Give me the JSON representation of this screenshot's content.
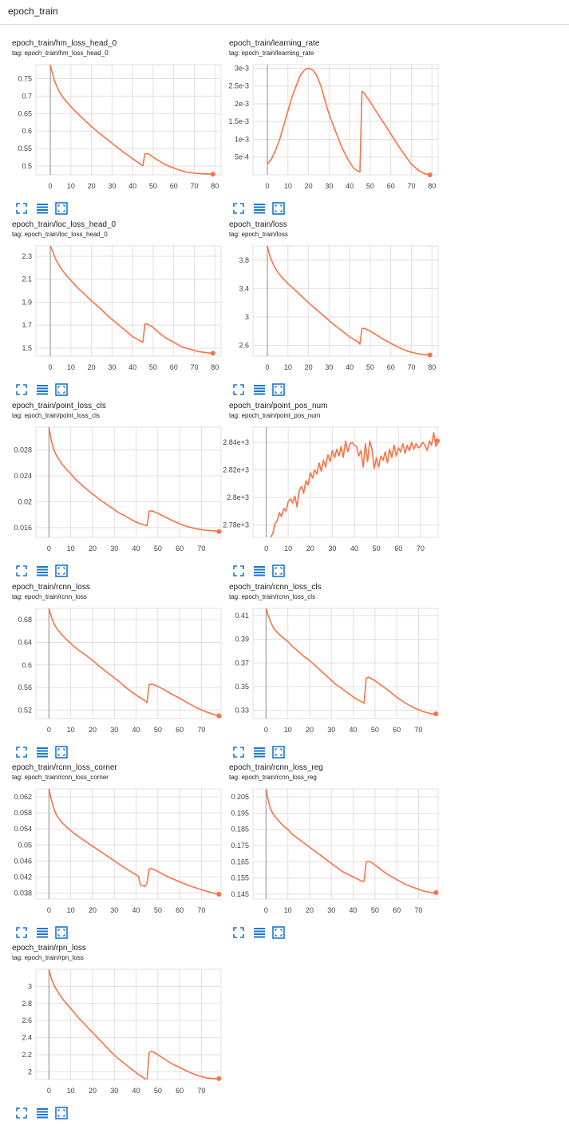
{
  "section": {
    "title": "epoch_train"
  },
  "colors": {
    "line": "#ff7043",
    "grid": "#e0e0e0",
    "axis": "#9e9e9e",
    "zero": "#bdbdbd",
    "tick": "#424242",
    "icon": "#1976d2"
  },
  "icons": [
    "fullscreen-icon",
    "toggle-y-log-icon",
    "fit-domain-icon"
  ],
  "chart_data": [
    {
      "type": "line",
      "title": "epoch_train/hm_loss_head_0",
      "tag": "tag: epoch_train/hm_loss_head_0",
      "xticks": [
        0,
        10,
        20,
        30,
        40,
        50,
        60,
        70,
        80
      ],
      "yticks": [
        0.5,
        0.55,
        0.6,
        0.65,
        0.7,
        0.75
      ],
      "ytick_labels": [
        "0.5",
        "0.55",
        "0.6",
        "0.65",
        "0.7",
        "0.75"
      ],
      "xlim": [
        -7,
        83
      ],
      "ylim": [
        0.475,
        0.79
      ],
      "x": [
        0,
        1,
        2,
        3,
        4,
        5,
        7,
        10,
        13,
        16,
        20,
        24,
        28,
        32,
        36,
        40,
        44,
        45,
        46,
        47,
        48,
        50,
        52,
        55,
        58,
        62,
        66,
        70,
        74,
        78,
        79
      ],
      "y": [
        0.79,
        0.765,
        0.745,
        0.73,
        0.717,
        0.707,
        0.69,
        0.67,
        0.652,
        0.635,
        0.613,
        0.593,
        0.575,
        0.556,
        0.538,
        0.521,
        0.505,
        0.501,
        0.535,
        0.536,
        0.534,
        0.526,
        0.518,
        0.507,
        0.499,
        0.49,
        0.483,
        0.48,
        0.478,
        0.477,
        0.477
      ]
    },
    {
      "type": "line",
      "title": "epoch_train/learning_rate",
      "tag": "tag: epoch_train/learning_rate",
      "xticks": [
        0,
        10,
        20,
        30,
        40,
        50,
        60,
        70,
        80
      ],
      "yticks": [
        0.0005,
        0.001,
        0.0015,
        0.002,
        0.0025,
        0.003
      ],
      "ytick_labels": [
        "5e-4",
        "1e-3",
        "1.5e-3",
        "2e-3",
        "2.5e-3",
        "3e-3"
      ],
      "xlim": [
        -7,
        83
      ],
      "ylim": [
        0,
        0.0031
      ],
      "x": [
        0,
        2,
        4,
        6,
        8,
        10,
        12,
        14,
        16,
        18,
        20,
        22,
        24,
        26,
        28,
        30,
        33,
        36,
        39,
        42,
        44,
        45,
        46,
        47,
        50,
        55,
        60,
        65,
        70,
        74,
        77,
        79
      ],
      "y": [
        0.0003,
        0.00045,
        0.0007,
        0.001,
        0.0014,
        0.0018,
        0.0022,
        0.0025,
        0.0028,
        0.00295,
        0.003,
        0.00295,
        0.0028,
        0.0025,
        0.0021,
        0.0017,
        0.00125,
        0.0008,
        0.00045,
        0.00018,
        0.0001,
        8e-05,
        0.00235,
        0.0023,
        0.00205,
        0.0016,
        0.00115,
        0.0007,
        0.0003,
        0.0001,
        2e-05,
        0
      ]
    },
    {
      "type": "line",
      "title": "epoch_train/loc_loss_head_0",
      "tag": "tag: epoch_train/loc_loss_head_0",
      "xticks": [
        0,
        10,
        20,
        30,
        40,
        50,
        60,
        70,
        80
      ],
      "yticks": [
        1.5,
        1.7,
        1.9,
        2.1,
        2.3
      ],
      "ytick_labels": [
        "1.5",
        "1.7",
        "1.9",
        "2.1",
        "2.3"
      ],
      "xlim": [
        -7,
        83
      ],
      "ylim": [
        1.43,
        2.39
      ],
      "x": [
        0,
        1,
        2,
        3,
        5,
        7,
        10,
        13,
        16,
        20,
        24,
        28,
        32,
        36,
        40,
        44,
        45,
        46,
        47,
        48,
        50,
        53,
        56,
        60,
        64,
        68,
        72,
        76,
        79
      ],
      "y": [
        2.39,
        2.35,
        2.3,
        2.26,
        2.2,
        2.15,
        2.09,
        2.03,
        1.98,
        1.91,
        1.85,
        1.78,
        1.72,
        1.66,
        1.6,
        1.56,
        1.55,
        1.71,
        1.71,
        1.7,
        1.68,
        1.63,
        1.59,
        1.55,
        1.51,
        1.49,
        1.47,
        1.46,
        1.455
      ]
    },
    {
      "type": "line",
      "title": "epoch_train/loss",
      "tag": "tag: epoch_train/loss",
      "xticks": [
        0,
        10,
        20,
        30,
        40,
        50,
        60,
        70,
        80
      ],
      "yticks": [
        2.6,
        3,
        3.4,
        3.8
      ],
      "ytick_labels": [
        "2.6",
        "3",
        "3.4",
        "3.8"
      ],
      "xlim": [
        -7,
        83
      ],
      "ylim": [
        2.45,
        4.0
      ],
      "x": [
        0,
        1,
        2,
        3,
        5,
        7,
        10,
        13,
        16,
        20,
        24,
        28,
        32,
        36,
        40,
        44,
        45,
        46,
        47,
        48,
        50,
        53,
        56,
        60,
        64,
        68,
        72,
        76,
        79
      ],
      "y": [
        4.0,
        3.88,
        3.8,
        3.73,
        3.63,
        3.56,
        3.47,
        3.39,
        3.31,
        3.2,
        3.1,
        3.0,
        2.9,
        2.81,
        2.72,
        2.65,
        2.62,
        2.84,
        2.84,
        2.83,
        2.8,
        2.75,
        2.69,
        2.63,
        2.57,
        2.52,
        2.49,
        2.47,
        2.465
      ]
    },
    {
      "type": "line",
      "title": "epoch_train/point_loss_cls",
      "tag": "tag: epoch_train/point_loss_cls",
      "xticks": [
        0,
        10,
        20,
        30,
        40,
        50,
        60,
        70
      ],
      "yticks": [
        0.016,
        0.02,
        0.024,
        0.028
      ],
      "ytick_labels": [
        "0.016",
        "0.02",
        "0.024",
        "0.028"
      ],
      "xlim": [
        -6,
        79
      ],
      "ylim": [
        0.0145,
        0.0315
      ],
      "x": [
        0,
        1,
        2,
        3,
        4,
        6,
        8,
        10,
        12,
        14,
        17,
        20,
        23,
        26,
        29,
        32,
        35,
        38,
        41,
        44,
        45,
        46,
        47,
        48,
        50,
        53,
        56,
        60,
        64,
        68,
        72,
        76,
        78
      ],
      "y": [
        0.0315,
        0.0295,
        0.0283,
        0.0274,
        0.0268,
        0.0258,
        0.025,
        0.0243,
        0.0235,
        0.0229,
        0.022,
        0.0212,
        0.0204,
        0.0197,
        0.019,
        0.0183,
        0.0178,
        0.0172,
        0.0167,
        0.0164,
        0.0163,
        0.0185,
        0.0186,
        0.0185,
        0.0182,
        0.0177,
        0.0172,
        0.0166,
        0.0161,
        0.0158,
        0.0156,
        0.0155,
        0.0154
      ]
    },
    {
      "type": "line",
      "title": "epoch_train/point_pos_num",
      "tag": "tag: epoch_train/point_pos_num",
      "xticks": [
        0,
        10,
        20,
        30,
        40,
        50,
        60,
        70
      ],
      "yticks": [
        2780,
        2800,
        2820,
        2840
      ],
      "ytick_labels": [
        "2.78e+3",
        "2.8e+3",
        "2.82e+3",
        "2.84e+3"
      ],
      "xlim": [
        -6,
        78
      ],
      "ylim": [
        2771,
        2851
      ],
      "x": [
        2,
        3,
        4,
        5,
        6,
        7,
        8,
        9,
        10,
        11,
        12,
        13,
        14,
        15,
        16,
        17,
        18,
        19,
        20,
        21,
        22,
        23,
        24,
        25,
        26,
        27,
        28,
        29,
        30,
        31,
        32,
        33,
        34,
        35,
        36,
        37,
        38,
        39,
        40,
        41,
        42,
        43,
        44,
        45,
        46,
        47,
        48,
        49,
        50,
        51,
        52,
        53,
        54,
        55,
        56,
        57,
        58,
        59,
        60,
        61,
        62,
        63,
        64,
        65,
        66,
        67,
        68,
        69,
        70,
        71,
        72,
        73,
        74,
        75,
        76,
        77,
        78
      ],
      "y": [
        2771,
        2774,
        2781,
        2783,
        2789,
        2786,
        2792,
        2790,
        2797,
        2799,
        2796,
        2801,
        2793,
        2805,
        2808,
        2803,
        2812,
        2809,
        2818,
        2814,
        2820,
        2817,
        2825,
        2819,
        2827,
        2822,
        2831,
        2826,
        2834,
        2829,
        2835,
        2830,
        2837,
        2829,
        2841,
        2833,
        2839,
        2840,
        2838,
        2837,
        2830,
        2834,
        2822,
        2839,
        2826,
        2841,
        2835,
        2821,
        2829,
        2822,
        2830,
        2827,
        2833,
        2825,
        2835,
        2829,
        2838,
        2830,
        2836,
        2833,
        2839,
        2832,
        2838,
        2834,
        2840,
        2835,
        2839,
        2836,
        2837,
        2840,
        2838,
        2834,
        2841,
        2838,
        2847,
        2837,
        2841
      ]
    },
    {
      "type": "line",
      "title": "epoch_train/rcnn_loss",
      "tag": "tag: epoch_train/rcnn_loss",
      "xticks": [
        0,
        10,
        20,
        30,
        40,
        50,
        60,
        70
      ],
      "yticks": [
        0.52,
        0.56,
        0.6,
        0.64,
        0.68
      ],
      "ytick_labels": [
        "0.52",
        "0.56",
        "0.6",
        "0.64",
        "0.68"
      ],
      "xlim": [
        -6,
        79
      ],
      "ylim": [
        0.505,
        0.7
      ],
      "x": [
        0,
        1,
        2,
        3,
        4,
        6,
        8,
        10,
        12,
        14,
        17,
        20,
        23,
        26,
        29,
        32,
        35,
        38,
        41,
        44,
        45,
        46,
        47,
        48,
        50,
        53,
        56,
        60,
        64,
        68,
        72,
        76,
        78
      ],
      "y": [
        0.7,
        0.686,
        0.676,
        0.668,
        0.662,
        0.653,
        0.645,
        0.638,
        0.631,
        0.625,
        0.617,
        0.608,
        0.598,
        0.589,
        0.58,
        0.571,
        0.561,
        0.552,
        0.544,
        0.537,
        0.533,
        0.565,
        0.566,
        0.565,
        0.562,
        0.556,
        0.549,
        0.541,
        0.532,
        0.524,
        0.517,
        0.512,
        0.51
      ]
    },
    {
      "type": "line",
      "title": "epoch_train/rcnn_loss_cls",
      "tag": "tag: epoch_train/rcnn_loss_cls",
      "xticks": [
        0,
        10,
        20,
        30,
        40,
        50,
        60,
        70
      ],
      "yticks": [
        0.33,
        0.35,
        0.37,
        0.39,
        0.41
      ],
      "ytick_labels": [
        "0.33",
        "0.35",
        "0.37",
        "0.39",
        "0.41"
      ],
      "xlim": [
        -6,
        79
      ],
      "ylim": [
        0.323,
        0.416
      ],
      "x": [
        0,
        1,
        2,
        3,
        4,
        6,
        8,
        10,
        12,
        14,
        17,
        20,
        23,
        26,
        29,
        32,
        35,
        38,
        41,
        44,
        45,
        46,
        47,
        48,
        50,
        53,
        56,
        60,
        64,
        68,
        72,
        76,
        78
      ],
      "y": [
        0.416,
        0.41,
        0.405,
        0.401,
        0.398,
        0.394,
        0.391,
        0.388,
        0.384,
        0.381,
        0.376,
        0.372,
        0.367,
        0.362,
        0.357,
        0.352,
        0.348,
        0.344,
        0.34,
        0.337,
        0.336,
        0.357,
        0.358,
        0.357,
        0.355,
        0.351,
        0.347,
        0.341,
        0.336,
        0.332,
        0.329,
        0.327,
        0.327
      ]
    },
    {
      "type": "line",
      "title": "epoch_train/rcnn_loss_corner",
      "tag": "tag: epoch_train/rcnn_loss_corner",
      "xticks": [
        0,
        10,
        20,
        30,
        40,
        50,
        60,
        70
      ],
      "yticks": [
        0.038,
        0.042,
        0.046,
        0.05,
        0.054,
        0.058,
        0.062
      ],
      "ytick_labels": [
        "0.038",
        "0.042",
        "0.046",
        "0.05",
        "0.054",
        "0.058",
        "0.062"
      ],
      "xlim": [
        -6,
        79
      ],
      "ylim": [
        0.0365,
        0.064
      ],
      "x": [
        0,
        1,
        2,
        3,
        4,
        6,
        8,
        10,
        12,
        14,
        17,
        20,
        23,
        26,
        29,
        32,
        35,
        38,
        41,
        42,
        44,
        45,
        46,
        47,
        48,
        50,
        53,
        56,
        60,
        64,
        68,
        72,
        76,
        78
      ],
      "y": [
        0.064,
        0.0615,
        0.0595,
        0.058,
        0.057,
        0.0556,
        0.0545,
        0.0536,
        0.0527,
        0.0519,
        0.0508,
        0.0497,
        0.0486,
        0.0475,
        0.0464,
        0.0453,
        0.0442,
        0.0432,
        0.0422,
        0.04,
        0.0396,
        0.0405,
        0.044,
        0.0441,
        0.0439,
        0.0434,
        0.0425,
        0.0417,
        0.0408,
        0.0399,
        0.0392,
        0.0385,
        0.0379,
        0.0377
      ]
    },
    {
      "type": "line",
      "title": "epoch_train/rcnn_loss_reg",
      "tag": "tag: epoch_train/rcnn_loss_reg",
      "xticks": [
        0,
        10,
        20,
        30,
        40,
        50,
        60,
        70
      ],
      "yticks": [
        0.145,
        0.155,
        0.165,
        0.175,
        0.185,
        0.195,
        0.205
      ],
      "ytick_labels": [
        "0.145",
        "0.155",
        "0.165",
        "0.175",
        "0.185",
        "0.195",
        "0.205"
      ],
      "xlim": [
        -6,
        79
      ],
      "ylim": [
        0.142,
        0.21
      ],
      "x": [
        0,
        1,
        2,
        3,
        4,
        6,
        8,
        10,
        12,
        14,
        17,
        20,
        23,
        26,
        29,
        32,
        35,
        38,
        41,
        44,
        45,
        46,
        47,
        48,
        50,
        53,
        56,
        60,
        64,
        68,
        72,
        76,
        78
      ],
      "y": [
        0.21,
        0.203,
        0.198,
        0.195,
        0.193,
        0.19,
        0.187,
        0.185,
        0.182,
        0.18,
        0.177,
        0.174,
        0.171,
        0.168,
        0.165,
        0.162,
        0.159,
        0.157,
        0.155,
        0.153,
        0.153,
        0.165,
        0.165,
        0.165,
        0.163,
        0.16,
        0.157,
        0.154,
        0.151,
        0.149,
        0.147,
        0.146,
        0.146
      ]
    },
    {
      "type": "line",
      "title": "epoch_train/rpn_loss",
      "tag": "tag: epoch_train/rpn_loss",
      "xticks": [
        0,
        10,
        20,
        30,
        40,
        50,
        60,
        70
      ],
      "yticks": [
        2,
        2.2,
        2.4,
        2.6,
        2.8,
        3
      ],
      "ytick_labels": [
        "2",
        "2.2",
        "2.4",
        "2.6",
        "2.8",
        "3"
      ],
      "xlim": [
        -6,
        79
      ],
      "ylim": [
        1.91,
        3.2
      ],
      "x": [
        0,
        1,
        2,
        3,
        4,
        6,
        8,
        10,
        12,
        14,
        17,
        20,
        23,
        26,
        29,
        32,
        35,
        38,
        41,
        44,
        45,
        46,
        47,
        48,
        50,
        53,
        56,
        60,
        64,
        68,
        72,
        76,
        78
      ],
      "y": [
        3.2,
        3.1,
        3.03,
        2.98,
        2.94,
        2.86,
        2.8,
        2.74,
        2.68,
        2.62,
        2.54,
        2.46,
        2.38,
        2.3,
        2.22,
        2.15,
        2.09,
        2.03,
        1.97,
        1.92,
        1.9,
        2.23,
        2.24,
        2.23,
        2.2,
        2.15,
        2.1,
        2.05,
        2.0,
        1.96,
        1.93,
        1.92,
        1.92
      ]
    }
  ]
}
